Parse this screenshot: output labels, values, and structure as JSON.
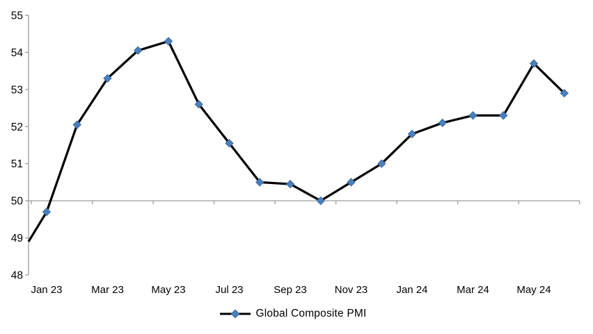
{
  "page": {
    "background_color": "#ffffff"
  },
  "chart_data": {
    "type": "line",
    "title": "",
    "legend": {
      "position": "bottom-center",
      "entries": [
        "Global Composite PMI"
      ]
    },
    "categories": [
      "Jan 23",
      "Feb 23",
      "Mar 23",
      "Apr 23",
      "May 23",
      "Jun 23",
      "Jul 23",
      "Aug 23",
      "Sep 23",
      "Oct 23",
      "Nov 23",
      "Dec 23",
      "Jan 24",
      "Feb 24",
      "Mar 24",
      "Apr 24",
      "May 24",
      "Jun 24"
    ],
    "series": [
      {
        "name": "Global Composite PMI",
        "values": [
          49.7,
          52.05,
          53.3,
          54.05,
          54.3,
          52.6,
          51.55,
          50.5,
          50.45,
          50.0,
          50.5,
          51.0,
          51.8,
          52.1,
          52.3,
          52.3,
          53.7,
          52.9
        ],
        "left_edge_entry_value": 48.9,
        "line_color": "#000000",
        "line_width": 3.25,
        "marker": "diamond",
        "marker_fill": "#4d80ba",
        "marker_edge": "#3a6ba3",
        "marker_size": 11
      }
    ],
    "x_axis": {
      "tick_labels": [
        "Jan 23",
        "Mar 23",
        "May 23",
        "Jul 23",
        "Sep 23",
        "Nov 23",
        "Jan 24",
        "Mar 24",
        "May 24"
      ],
      "label_every_n_categories": 2,
      "crosses_at_value": 50,
      "ticks_outside": true
    },
    "y_axis": {
      "min": 48,
      "max": 55,
      "tick_step": 1,
      "tick_labels": [
        "48",
        "49",
        "50",
        "51",
        "52",
        "53",
        "54",
        "55"
      ]
    },
    "grid": false,
    "colors": {
      "axis": "#9c9c9c",
      "text": "#000000"
    }
  }
}
